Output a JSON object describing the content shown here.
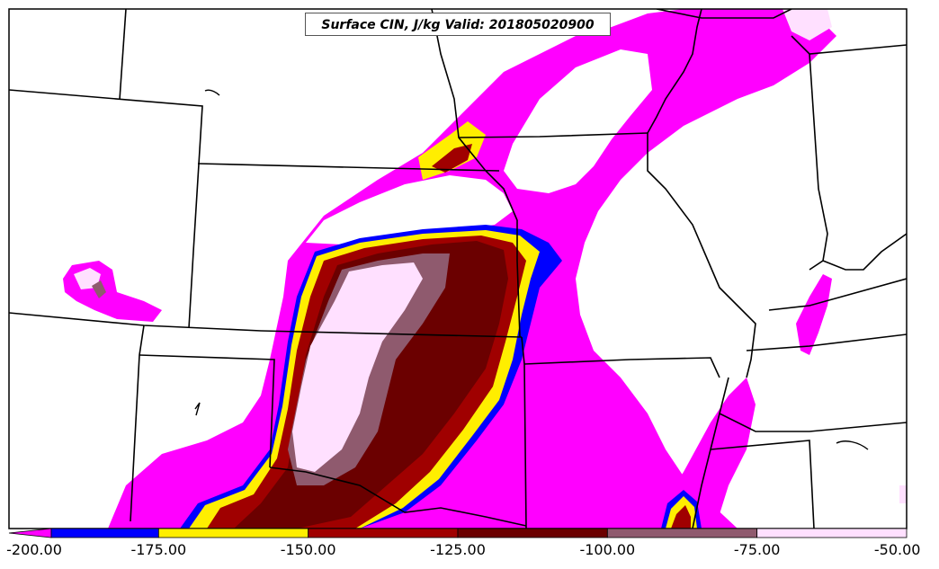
{
  "title": "Surface CIN, J/kg Valid: 201805020900",
  "colorbar": {
    "ticks": [
      "-200.00",
      "-175.00",
      "-150.00",
      "-125.00",
      "-100.00",
      "-75.00",
      "-50.00"
    ],
    "bins": [
      {
        "from": -200,
        "to": -175,
        "color": "#0000ff"
      },
      {
        "from": -175,
        "to": -150,
        "color": "#ffee00"
      },
      {
        "from": -150,
        "to": -125,
        "color": "#a00000"
      },
      {
        "from": -125,
        "to": -100,
        "color": "#6b0000"
      },
      {
        "from": -100,
        "to": -75,
        "color": "#8f5a6e"
      },
      {
        "from": -75,
        "to": -50,
        "color": "#ffe0ff"
      }
    ],
    "under_color": "#ff00ff"
  },
  "colors": {
    "magenta": "#ff00ff",
    "blue": "#0000ff",
    "yellow": "#ffee00",
    "red": "#a00000",
    "darkred": "#6b0000",
    "mauve": "#8f5a6e",
    "lightpink": "#ffe0ff"
  }
}
